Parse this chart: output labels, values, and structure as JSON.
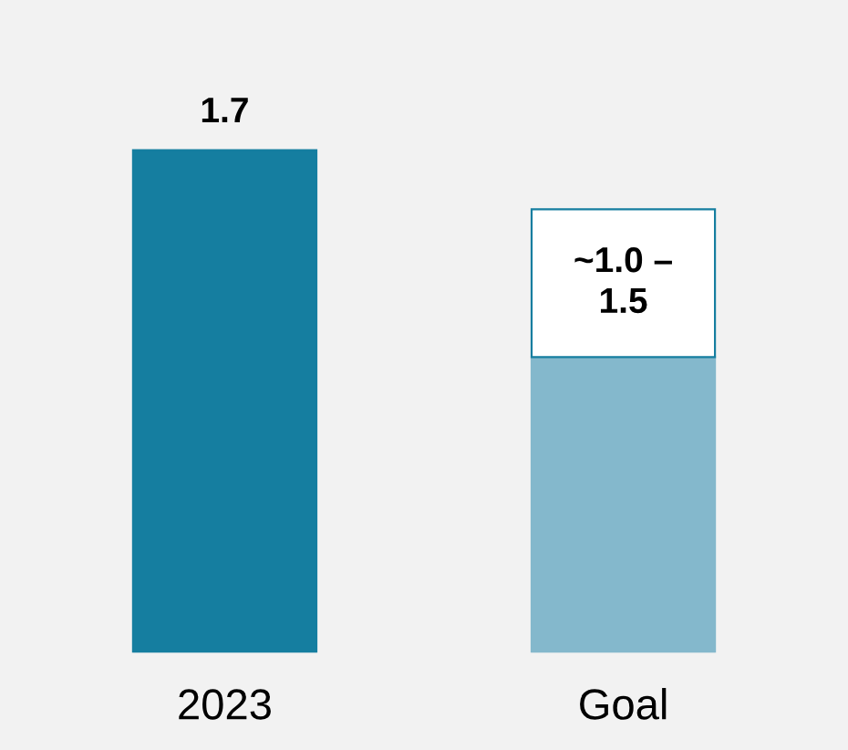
{
  "chart_data": {
    "type": "bar",
    "stacked": true,
    "categories": [
      "2023",
      "Goal"
    ],
    "series": [
      {
        "colors": [
          "#157ea0",
          "#84b8cc"
        ],
        "values": [
          1.7,
          1.0
        ],
        "value_labels": [
          "1.7",
          null
        ]
      },
      {
        "color": "#ffffff",
        "values": [
          null,
          0.5
        ],
        "value_labels": [
          null,
          "~1.0 –\n1.5"
        ]
      }
    ],
    "tick_labels": "x",
    "grid": false,
    "legend": false
  }
}
